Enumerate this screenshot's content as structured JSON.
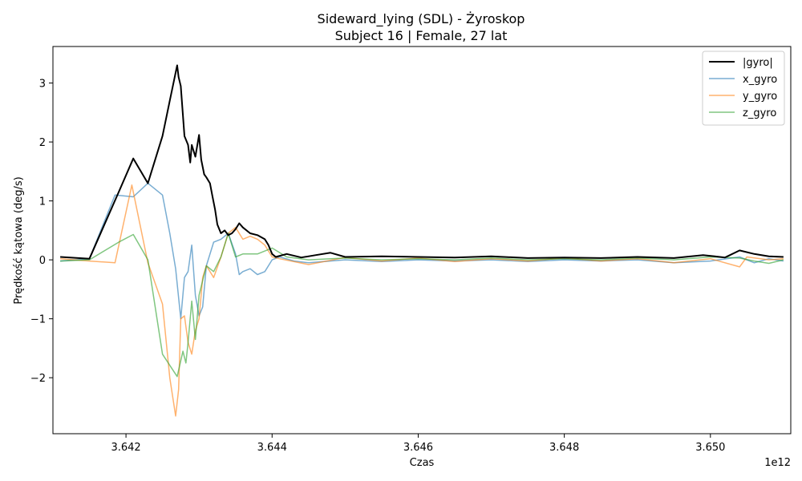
{
  "chart_data": {
    "type": "line",
    "title": "Sideward_lying (SDL) - Żyroskop",
    "subtitle": "Subject 16 | Female, 27 lat",
    "xlabel": "Czas",
    "ylabel": "Prędkość kątowa (deg/s)",
    "x_offset_label": "1e12",
    "xlim": [
      3641000000000.0,
      3651100000000.0
    ],
    "ylim": [
      -2.95,
      3.62
    ],
    "x_ticks": [
      3642000000000.0,
      3644000000000.0,
      3646000000000.0,
      3648000000000.0,
      3650000000000.0
    ],
    "x_tick_labels": [
      "3.642",
      "3.644",
      "3.646",
      "3.648",
      "3.650"
    ],
    "y_ticks": [
      -2,
      -1,
      0,
      1,
      2,
      3
    ],
    "y_tick_labels": [
      "−2",
      "−1",
      "0",
      "1",
      "2",
      "3"
    ],
    "legend_position": "top-right",
    "series": [
      {
        "name": "|gyro|",
        "color": "#000000",
        "x": [
          3641100000000.0,
          3641500000000.0,
          3641900000000.0,
          3642100000000.0,
          3642300000000.0,
          3642500000000.0,
          3642600000000.0,
          3642650000000.0,
          3642700000000.0,
          3642720000000.0,
          3642750000000.0,
          3642800000000.0,
          3642850000000.0,
          3642880000000.0,
          3642900000000.0,
          3642950000000.0,
          3643000000000.0,
          3643030000000.0,
          3643070000000.0,
          3643100000000.0,
          3643150000000.0,
          3643180000000.0,
          3643220000000.0,
          3643250000000.0,
          3643300000000.0,
          3643350000000.0,
          3643400000000.0,
          3643450000000.0,
          3643500000000.0,
          3643550000000.0,
          3643600000000.0,
          3643700000000.0,
          3643800000000.0,
          3643900000000.0,
          3643950000000.0,
          3644000000000.0,
          3644050000000.0,
          3644200000000.0,
          3644400000000.0,
          3644600000000.0,
          3644800000000.0,
          3645000000000.0,
          3645500000000.0,
          3646000000000.0,
          3646500000000.0,
          3647000000000.0,
          3647500000000.0,
          3648000000000.0,
          3648500000000.0,
          3649000000000.0,
          3649500000000.0,
          3649900000000.0,
          3650200000000.0,
          3650400000000.0,
          3650600000000.0,
          3650800000000.0,
          3651000000000.0
        ],
        "y": [
          0.05,
          0.02,
          1.15,
          1.72,
          1.3,
          2.1,
          2.7,
          3.0,
          3.3,
          3.1,
          2.95,
          2.1,
          1.95,
          1.65,
          1.95,
          1.75,
          2.12,
          1.7,
          1.45,
          1.4,
          1.3,
          1.1,
          0.85,
          0.6,
          0.45,
          0.5,
          0.42,
          0.45,
          0.52,
          0.62,
          0.55,
          0.45,
          0.42,
          0.35,
          0.25,
          0.1,
          0.05,
          0.1,
          0.04,
          0.08,
          0.12,
          0.05,
          0.06,
          0.05,
          0.04,
          0.06,
          0.03,
          0.04,
          0.03,
          0.05,
          0.03,
          0.08,
          0.04,
          0.16,
          0.1,
          0.06,
          0.05
        ]
      },
      {
        "name": "x_gyro",
        "color": "#1f77b4",
        "x": [
          3641100000000.0,
          3641500000000.0,
          3641850000000.0,
          3642100000000.0,
          3642300000000.0,
          3642500000000.0,
          3642600000000.0,
          3642680000000.0,
          3642750000000.0,
          3642800000000.0,
          3642850000000.0,
          3642900000000.0,
          3642950000000.0,
          3643000000000.0,
          3643050000000.0,
          3643100000000.0,
          3643200000000.0,
          3643300000000.0,
          3643400000000.0,
          3643500000000.0,
          3643550000000.0,
          3643600000000.0,
          3643700000000.0,
          3643800000000.0,
          3643900000000.0,
          3644000000000.0,
          3644100000000.0,
          3644300000000.0,
          3644500000000.0,
          3645000000000.0,
          3645500000000.0,
          3646000000000.0,
          3646500000000.0,
          3647000000000.0,
          3647500000000.0,
          3648000000000.0,
          3648500000000.0,
          3649000000000.0,
          3649500000000.0,
          3650000000000.0,
          3650400000000.0,
          3650600000000.0,
          3650800000000.0,
          3651000000000.0
        ],
        "y": [
          -0.02,
          0.02,
          1.1,
          1.07,
          1.3,
          1.1,
          0.45,
          -0.15,
          -1.0,
          -0.3,
          -0.2,
          0.25,
          -0.6,
          -0.95,
          -0.8,
          -0.1,
          0.3,
          0.35,
          0.45,
          0.1,
          -0.25,
          -0.2,
          -0.15,
          -0.25,
          -0.2,
          0.0,
          0.05,
          -0.02,
          -0.05,
          0.0,
          -0.03,
          0.0,
          -0.02,
          0.0,
          -0.03,
          0.0,
          -0.02,
          0.0,
          -0.05,
          -0.02,
          0.05,
          -0.05,
          0.02,
          -0.02
        ]
      },
      {
        "name": "y_gyro",
        "color": "#ff7f0e",
        "x": [
          3641100000000.0,
          3641500000000.0,
          3641850000000.0,
          3642080000000.0,
          3642300000000.0,
          3642500000000.0,
          3642600000000.0,
          3642680000000.0,
          3642720000000.0,
          3642750000000.0,
          3642800000000.0,
          3642850000000.0,
          3642900000000.0,
          3642950000000.0,
          3643000000000.0,
          3643050000000.0,
          3643100000000.0,
          3643200000000.0,
          3643300000000.0,
          3643400000000.0,
          3643500000000.0,
          3643600000000.0,
          3643700000000.0,
          3643800000000.0,
          3643900000000.0,
          3644000000000.0,
          3644100000000.0,
          3644500000000.0,
          3645000000000.0,
          3645500000000.0,
          3646000000000.0,
          3646500000000.0,
          3647000000000.0,
          3647500000000.0,
          3648000000000.0,
          3648500000000.0,
          3649000000000.0,
          3649500000000.0,
          3650000000000.0,
          3650400000000.0,
          3650500000000.0,
          3650800000000.0,
          3651000000000.0
        ],
        "y": [
          0.02,
          -0.02,
          -0.05,
          1.27,
          -0.05,
          -0.75,
          -2.0,
          -2.65,
          -2.2,
          -1.0,
          -0.95,
          -1.4,
          -1.6,
          -1.2,
          -1.0,
          -0.3,
          -0.1,
          -0.3,
          0.05,
          0.45,
          0.55,
          0.35,
          0.4,
          0.35,
          0.25,
          0.05,
          0.02,
          -0.08,
          0.04,
          -0.02,
          0.03,
          -0.03,
          0.02,
          -0.02,
          0.03,
          -0.02,
          0.02,
          -0.05,
          0.02,
          -0.12,
          0.05,
          0.0,
          0.02
        ]
      },
      {
        "name": "z_gyro",
        "color": "#2ca02c",
        "x": [
          3641100000000.0,
          3641500000000.0,
          3641900000000.0,
          3642100000000.0,
          3642300000000.0,
          3642500000000.0,
          3642700000000.0,
          3642780000000.0,
          3642820000000.0,
          3642850000000.0,
          3642900000000.0,
          3642950000000.0,
          3643000000000.0,
          3643100000000.0,
          3643200000000.0,
          3643300000000.0,
          3643400000000.0,
          3643500000000.0,
          3643600000000.0,
          3643800000000.0,
          3644000000000.0,
          3644200000000.0,
          3644500000000.0,
          3645000000000.0,
          3645500000000.0,
          3646000000000.0,
          3646500000000.0,
          3647000000000.0,
          3647500000000.0,
          3648000000000.0,
          3648500000000.0,
          3649000000000.0,
          3649500000000.0,
          3650000000000.0,
          3650400000000.0,
          3650600000000.0,
          3650800000000.0,
          3651000000000.0
        ],
        "y": [
          -0.02,
          0.0,
          0.3,
          0.43,
          0.0,
          -1.6,
          -1.98,
          -1.55,
          -1.75,
          -1.4,
          -0.7,
          -1.35,
          -0.6,
          -0.1,
          -0.2,
          0.05,
          0.45,
          0.05,
          0.1,
          0.1,
          0.2,
          0.05,
          0.0,
          0.03,
          0.0,
          0.02,
          0.0,
          0.03,
          0.0,
          0.02,
          0.0,
          0.03,
          0.0,
          0.05,
          0.03,
          -0.02,
          -0.06,
          0.0
        ]
      }
    ]
  }
}
